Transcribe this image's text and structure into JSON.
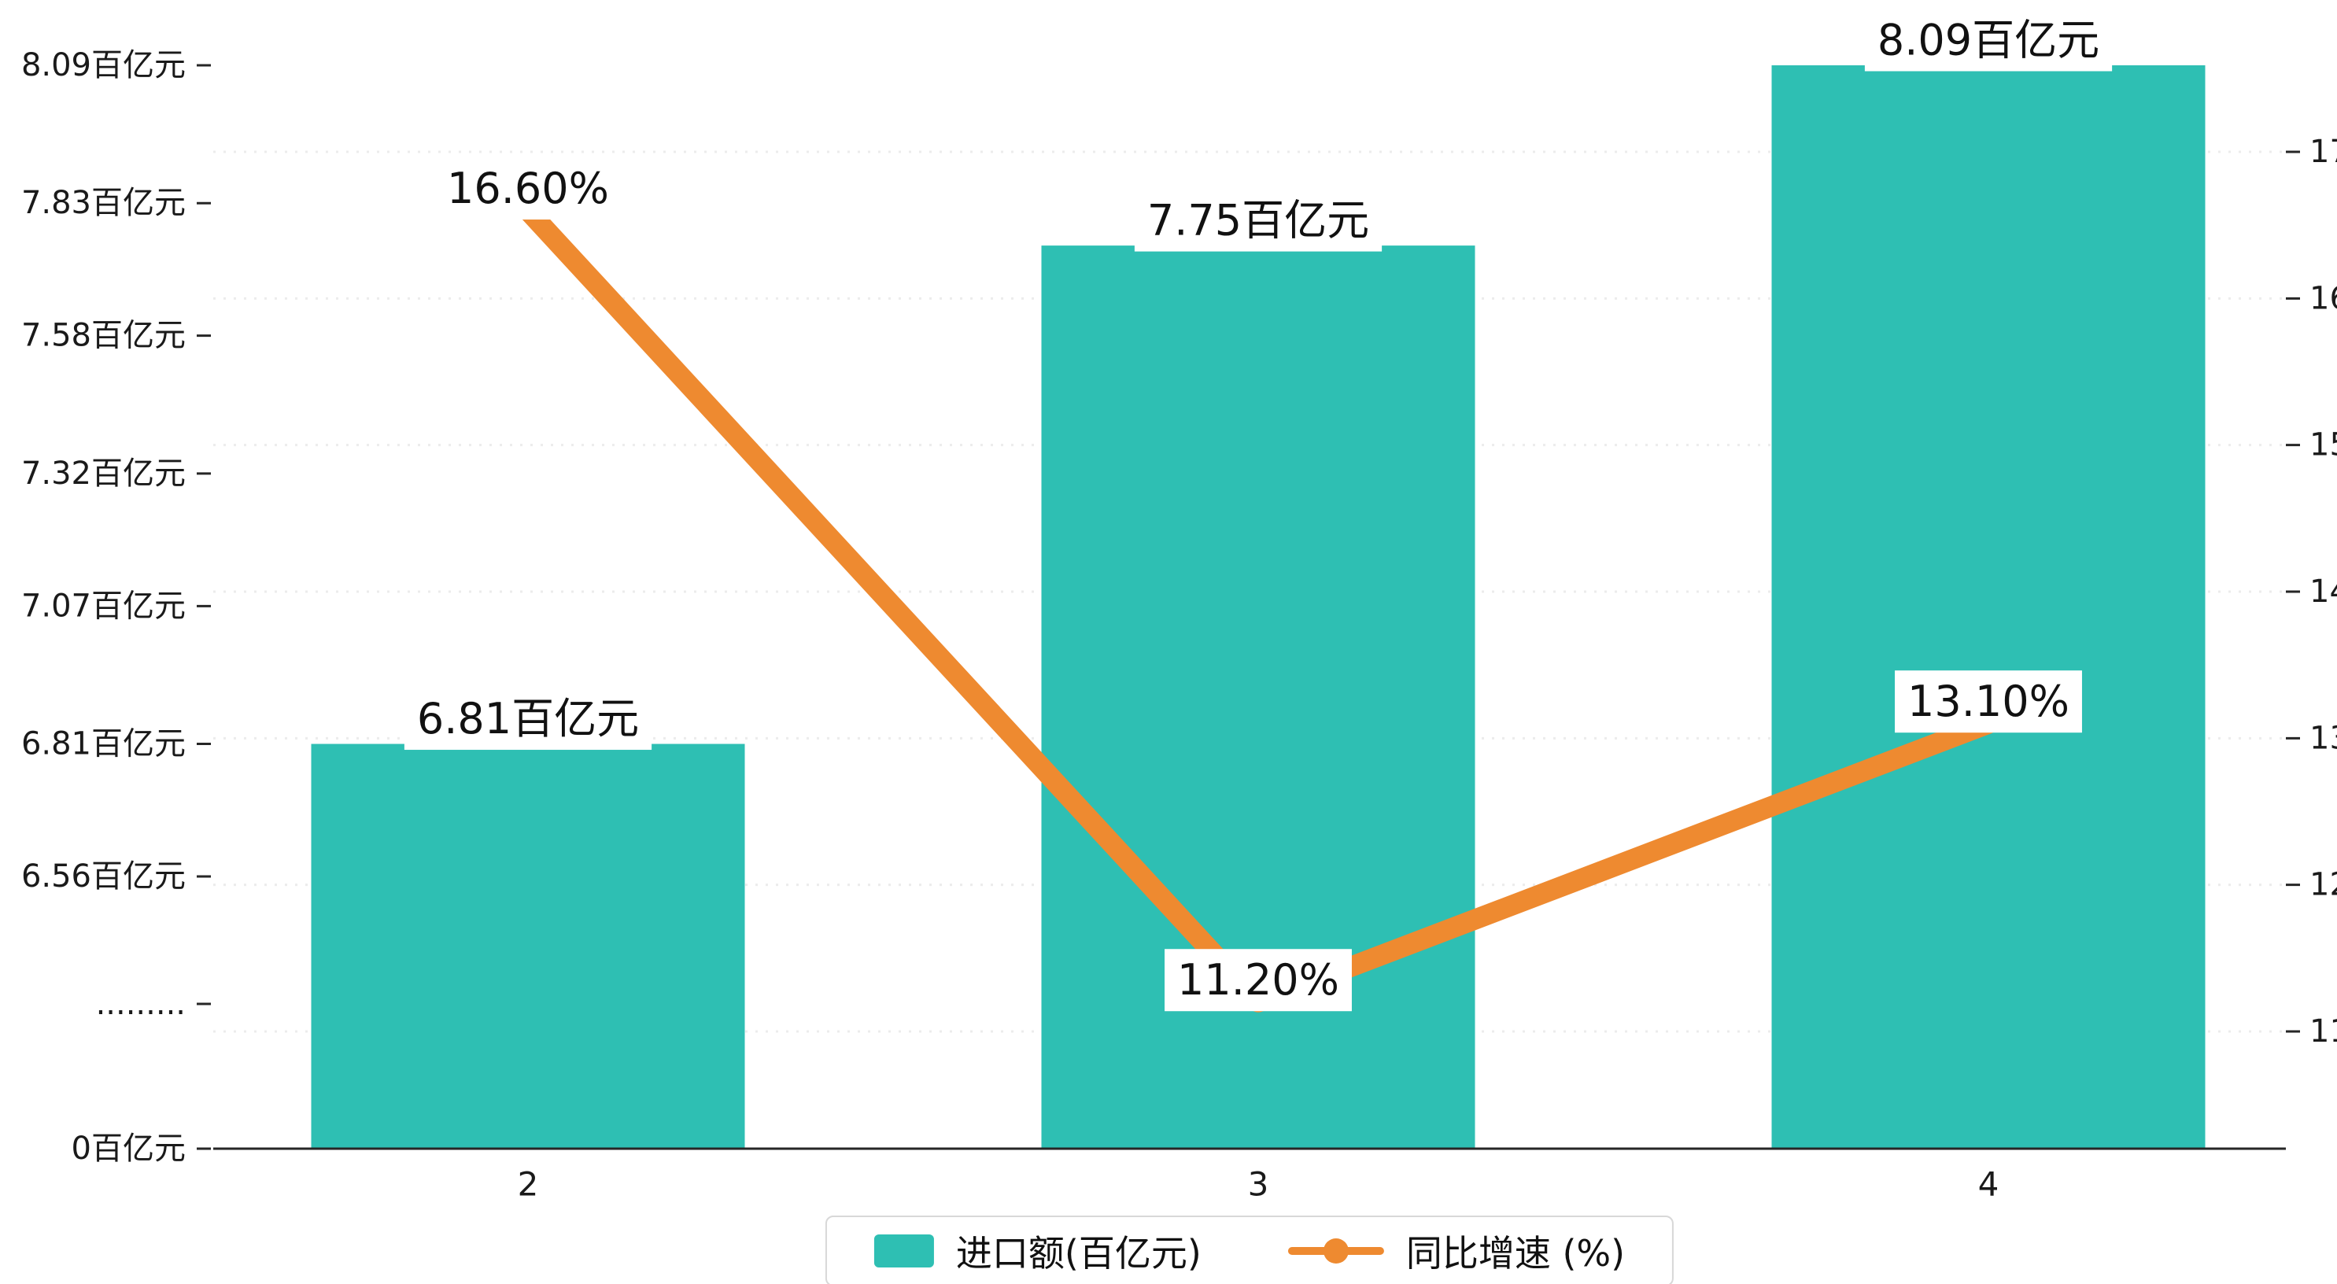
{
  "chart_data": {
    "type": "bar+line",
    "title": "",
    "categories": [
      "2",
      "3",
      "4"
    ],
    "series": [
      {
        "name": "进口额(百亿元)",
        "type": "bar",
        "color": "#2ebfb3",
        "values": [
          6.81,
          7.75,
          8.09
        ],
        "value_labels": [
          "6.81百亿元",
          "7.75百亿元",
          "8.09百亿元"
        ]
      },
      {
        "name": "同比增速 (%)",
        "type": "line",
        "color": "#ee8a30",
        "values": [
          16.6,
          11.2,
          13.1
        ],
        "value_labels": [
          "16.60%",
          "11.20%",
          "13.10%"
        ]
      }
    ],
    "left_axis": {
      "unit": "百亿元",
      "broken_axis": true,
      "ticks": [
        {
          "label": "8.09百亿元",
          "value": 8.09
        },
        {
          "label": "7.83百亿元",
          "value": 7.83
        },
        {
          "label": "7.58百亿元",
          "value": 7.58
        },
        {
          "label": "7.32百亿元",
          "value": 7.32
        },
        {
          "label": "7.07百亿元",
          "value": 7.07
        },
        {
          "label": "6.81百亿元",
          "value": 6.81
        },
        {
          "label": "6.56百亿元",
          "value": 6.56
        },
        {
          "label": ".........",
          "value": "break"
        },
        {
          "label": "0百亿元",
          "value": 0
        }
      ]
    },
    "right_axis": {
      "min": 11,
      "max": 17,
      "ticks": [
        "17",
        "16",
        "15",
        "14",
        "13",
        "12",
        "11"
      ]
    },
    "legend": {
      "position": "bottom-center",
      "items": [
        {
          "label": "进口额(百亿元)",
          "marker": "bar-swatch"
        },
        {
          "label": "同比增速 (%)",
          "marker": "line-dot"
        }
      ]
    },
    "grid": true
  }
}
